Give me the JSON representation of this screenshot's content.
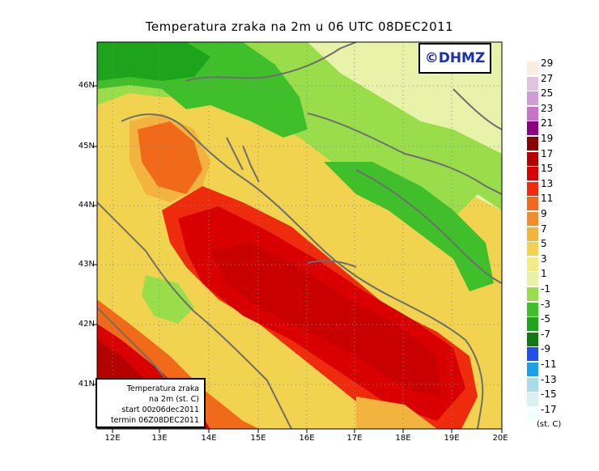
{
  "title": "Temperatura zraka na 2m u 06 UTC 08DEC2011",
  "logo": "©DHMZ",
  "info_box": {
    "line1": "Temperatura zraka",
    "line2": "na 2m (st. C)",
    "line3": "start 00z06dec2011",
    "line4": "termin 06Z08DEC2011"
  },
  "lat_labels": [
    "46N",
    "45N",
    "44N",
    "43N",
    "42N",
    "41N"
  ],
  "lon_labels": [
    "12E",
    "13E",
    "14E",
    "15E",
    "16E",
    "17E",
    "18E",
    "19E",
    "20E"
  ],
  "legend": {
    "unit": "(st. C)",
    "labels": [
      "29",
      "27",
      "25",
      "23",
      "21",
      "19",
      "17",
      "15",
      "13",
      "11",
      "9",
      "7",
      "5",
      "3",
      "1",
      "-1",
      "-3",
      "-5",
      "-7",
      "-9",
      "-11",
      "-13",
      "-15",
      "-17"
    ],
    "colors": [
      "#fbeee0",
      "#e0c3e0",
      "#d39bd3",
      "#c774c7",
      "#8b0080",
      "#8b0000",
      "#b40000",
      "#d80000",
      "#ee2b0c",
      "#f06a1a",
      "#f08c2e",
      "#f2b33f",
      "#f2d34f",
      "#f7ea86",
      "#e8f2a8",
      "#99dd4a",
      "#3fc02b",
      "#1ea41a",
      "#0f7a12",
      "#2050e8",
      "#1ea0e8",
      "#a8dcea",
      "#d8f2f2",
      "#f4ffff"
    ]
  },
  "colors": {
    "sea_warm": "#c80000",
    "coast_orange": "#f06a1a",
    "lowland_yellow": "#f2d34f",
    "mountain_green": "#3fc02b",
    "coastline": "#6e6e6e"
  }
}
